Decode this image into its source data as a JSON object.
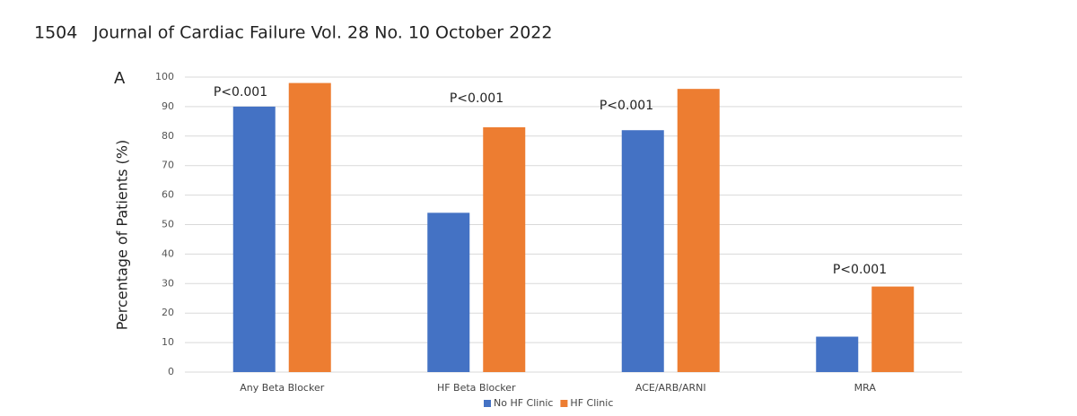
{
  "header": {
    "page": "1504",
    "journal": "Journal of Cardiac Failure Vol. 28 No. 10 October 2022"
  },
  "panel_label": "A",
  "chart_data": {
    "type": "bar",
    "y_label": "Percentage of Patients (%)",
    "categories": [
      "Any Beta Blocker",
      "HF Beta Blocker",
      "ACE/ARB/ARNI",
      "MRA"
    ],
    "series": [
      {
        "name": "No HF Clinic",
        "color": "#4472c4",
        "values": [
          90,
          54,
          82,
          12
        ]
      },
      {
        "name": "HF Clinic",
        "color": "#ed7d31",
        "values": [
          98,
          83,
          96,
          29
        ]
      }
    ],
    "annotations": [
      "P<0.001",
      "P<0.001",
      "P<0.001",
      "P<0.001"
    ],
    "ylim": [
      0,
      100
    ],
    "yticks": [
      0,
      10,
      20,
      30,
      40,
      50,
      60,
      70,
      80,
      90,
      100
    ],
    "grid": true,
    "legend": "bottom"
  }
}
